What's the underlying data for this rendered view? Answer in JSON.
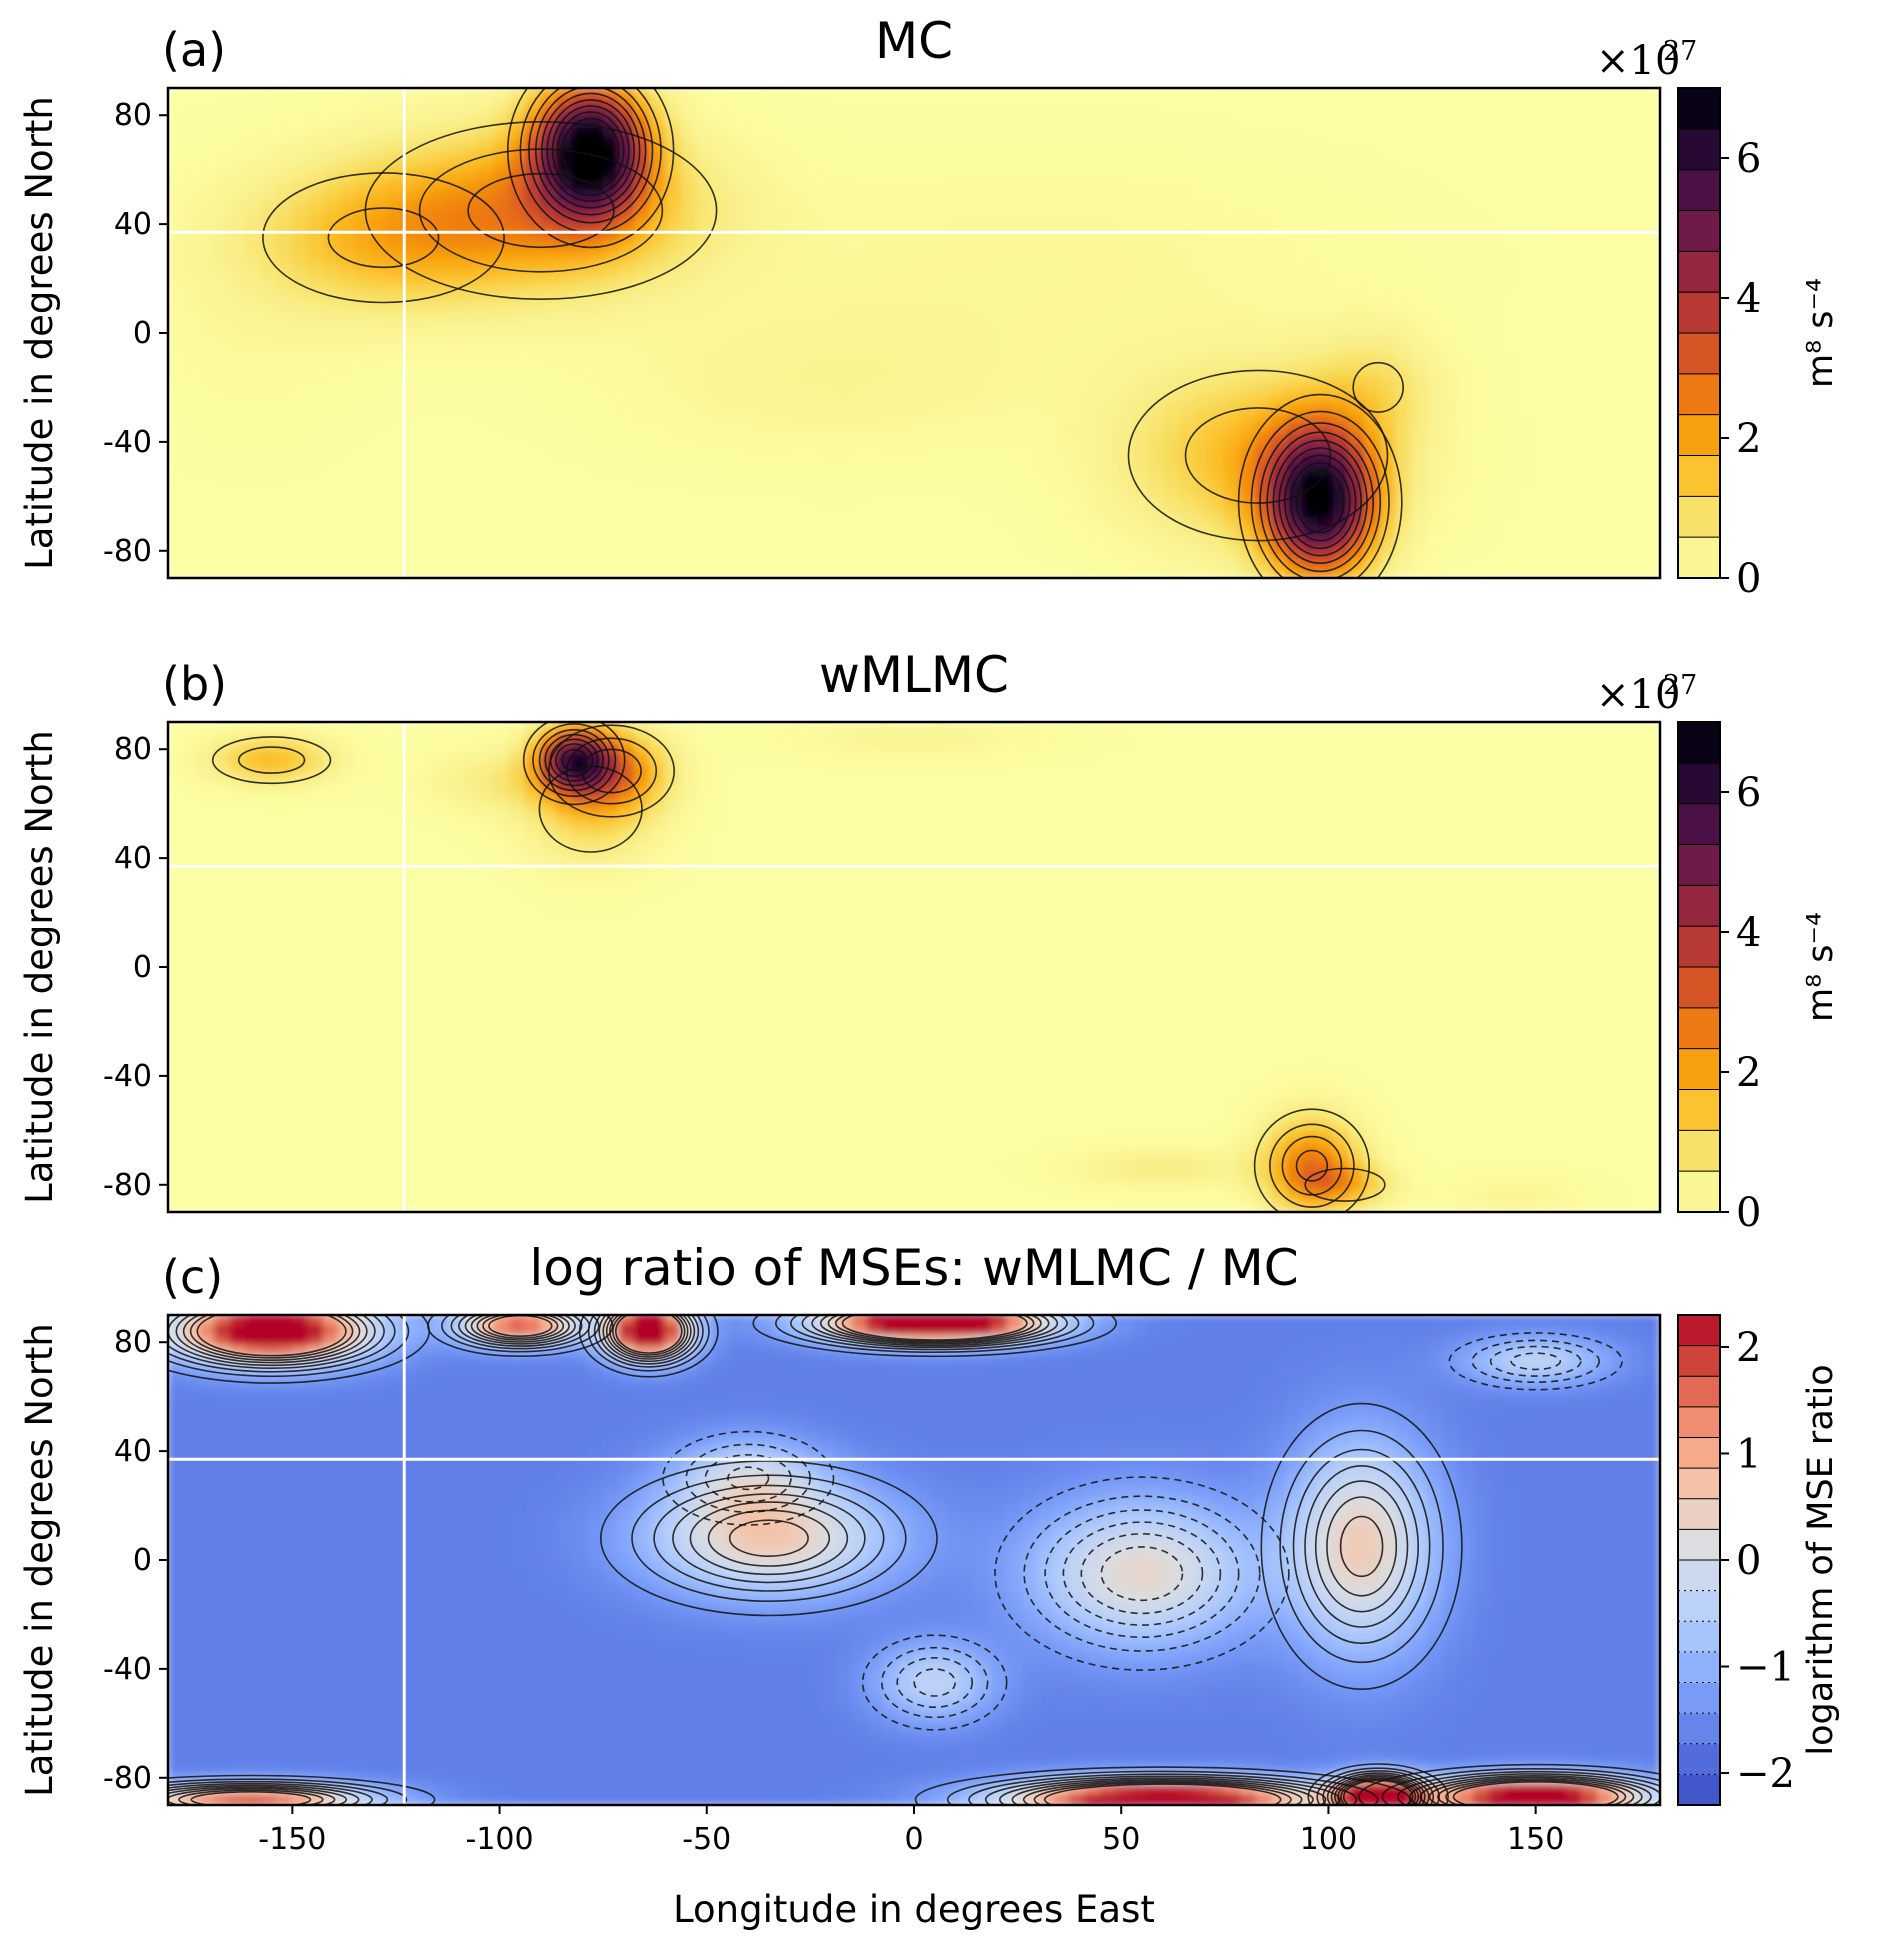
{
  "colors": {
    "background": "#ffffff",
    "guide_line": "#ffffff",
    "contour": "#111111",
    "inferno_scale": [
      "#fcfea4",
      "#f9f08c",
      "#f8dc5c",
      "#fbc12b",
      "#f9a40f",
      "#f0810d",
      "#e0611e",
      "#c8452e",
      "#ab3138",
      "#8c2441",
      "#6d1a47",
      "#4e1248",
      "#2f0a3a",
      "#120621",
      "#000004"
    ],
    "coolwarm_scale": [
      "#3b4cc0",
      "#4a63d3",
      "#5d7ce6",
      "#7396f5",
      "#8badfd",
      "#a3c2fe",
      "#bad0f8",
      "#cbd8ee",
      "#dcdddd",
      "#ebcfc0",
      "#f4c0a3",
      "#f5a485",
      "#ee8468",
      "#dc5d4a",
      "#c53334",
      "#b40426"
    ]
  },
  "chart_data": [
    {
      "id": "a",
      "type": "heatmap",
      "panel_label": "(a)",
      "title": "MC",
      "xlabel": "",
      "ylabel": "Latitude in degrees North",
      "xlim": [
        -180,
        180
      ],
      "ylim": [
        -90,
        90
      ],
      "yticks": [
        80,
        40,
        0,
        -40,
        -80
      ],
      "ytick_labels": [
        "80",
        "40",
        "0",
        "-40",
        "-80"
      ],
      "xticks": [],
      "colormap": "inferno",
      "colorbar": {
        "label": "m⁸ s⁻⁴",
        "multiplier": "×10",
        "multiplier_exp": "27",
        "range": [
          0,
          7
        ],
        "ticks": [
          0,
          2,
          4,
          6
        ],
        "tick_labels": [
          "0",
          "2",
          "4",
          "6"
        ],
        "levels": 12
      },
      "guides": {
        "vertical_longitude": -123,
        "horizontal_latitude": 37
      },
      "blobs": [
        {
          "lon": -78,
          "lat": 67,
          "peak": 6.9,
          "sx": 9,
          "sy": 16
        },
        {
          "lon": -90,
          "lat": 45,
          "peak": 2.2,
          "sx": 26,
          "sy": 20
        },
        {
          "lon": -128,
          "lat": 35,
          "peak": 1.4,
          "sx": 22,
          "sy": 18
        },
        {
          "lon": 98,
          "lat": -62,
          "peak": 6.4,
          "sx": 9,
          "sy": 18
        },
        {
          "lon": 83,
          "lat": -45,
          "peak": 1.6,
          "sx": 22,
          "sy": 22
        },
        {
          "lon": 112,
          "lat": -20,
          "peak": 0.7,
          "sx": 10,
          "sy": 15
        },
        {
          "lon": -20,
          "lat": -18,
          "peak": 0.35,
          "sx": 35,
          "sy": 18
        },
        {
          "lon": 30,
          "lat": 25,
          "peak": 0.25,
          "sx": 50,
          "sy": 25
        },
        {
          "lon": -160,
          "lat": 10,
          "peak": 0.2,
          "sx": 20,
          "sy": 30
        }
      ]
    },
    {
      "id": "b",
      "type": "heatmap",
      "panel_label": "(b)",
      "title": "wMLMC",
      "xlabel": "",
      "ylabel": "Latitude in degrees North",
      "xlim": [
        -180,
        180
      ],
      "ylim": [
        -90,
        90
      ],
      "yticks": [
        80,
        40,
        0,
        -40,
        -80
      ],
      "ytick_labels": [
        "80",
        "40",
        "0",
        "-40",
        "-80"
      ],
      "xticks": [],
      "colormap": "inferno",
      "colorbar": {
        "label": "m⁸ s⁻⁴",
        "multiplier": "×10",
        "multiplier_exp": "27",
        "range": [
          0,
          7
        ],
        "ticks": [
          0,
          2,
          4,
          6
        ],
        "tick_labels": [
          "0",
          "2",
          "4",
          "6"
        ],
        "levels": 12
      },
      "guides": {
        "vertical_longitude": -123,
        "horizontal_latitude": 37
      },
      "blobs": [
        {
          "lon": -82,
          "lat": 76,
          "peak": 4.6,
          "sx": 6,
          "sy": 8
        },
        {
          "lon": -73,
          "lat": 72,
          "peak": 2.4,
          "sx": 9,
          "sy": 10
        },
        {
          "lon": -78,
          "lat": 58,
          "peak": 1.1,
          "sx": 11,
          "sy": 14
        },
        {
          "lon": -100,
          "lat": 68,
          "peak": 0.6,
          "sx": 12,
          "sy": 8
        },
        {
          "lon": -155,
          "lat": 76,
          "peak": 1.6,
          "sx": 10,
          "sy": 6
        },
        {
          "lon": 96,
          "lat": -73,
          "peak": 2.6,
          "sx": 8,
          "sy": 12
        },
        {
          "lon": 104,
          "lat": -80,
          "peak": 1.2,
          "sx": 8,
          "sy": 5
        },
        {
          "lon": 60,
          "lat": -74,
          "peak": 0.6,
          "sx": 15,
          "sy": 5
        },
        {
          "lon": 0,
          "lat": 84,
          "peak": 0.35,
          "sx": 22,
          "sy": 5
        },
        {
          "lon": 145,
          "lat": -84,
          "peak": 0.3,
          "sx": 12,
          "sy": 5
        }
      ]
    },
    {
      "id": "c",
      "type": "heatmap",
      "panel_label": "(c)",
      "title": "log ratio of MSEs: wMLMC / MC",
      "xlabel": "Longitude in degrees East",
      "ylabel": "Latitude in degrees North",
      "xlim": [
        -180,
        180
      ],
      "ylim": [
        -90,
        90
      ],
      "yticks": [
        80,
        40,
        0,
        -40,
        -80
      ],
      "ytick_labels": [
        "80",
        "40",
        "0",
        "-40",
        "-80"
      ],
      "xticks": [
        -150,
        -100,
        -50,
        0,
        50,
        100,
        150
      ],
      "xtick_labels": [
        "-150",
        "-100",
        "-50",
        "0",
        "50",
        "100",
        "150"
      ],
      "colormap": "coolwarm",
      "colorbar": {
        "label": "logarithm of MSE ratio",
        "range": [
          -2.3,
          2.3
        ],
        "ticks": [
          -2,
          -1,
          0,
          1,
          2
        ],
        "tick_labels": [
          "−2",
          "−1",
          "0",
          "1",
          "2"
        ],
        "levels": 16
      },
      "guides": {
        "vertical_longitude": -123,
        "horizontal_latitude": 37
      },
      "baseline": -1.65,
      "blobs": [
        {
          "lon": -155,
          "lat": 84,
          "peak": 3.2,
          "sx": 16,
          "sy": 8
        },
        {
          "lon": -64,
          "lat": 84,
          "peak": 3.3,
          "sx": 7,
          "sy": 7
        },
        {
          "lon": 5,
          "lat": 87,
          "peak": 3.9,
          "sx": 18,
          "sy": 5
        },
        {
          "lon": -95,
          "lat": 86,
          "peak": 1.8,
          "sx": 10,
          "sy": 5
        },
        {
          "lon": 60,
          "lat": -88,
          "peak": 3.3,
          "sx": 25,
          "sy": 5
        },
        {
          "lon": 112,
          "lat": -87,
          "peak": 3.6,
          "sx": 7,
          "sy": 5
        },
        {
          "lon": 150,
          "lat": -87,
          "peak": 3.1,
          "sx": 18,
          "sy": 5
        },
        {
          "lon": -160,
          "lat": -88,
          "peak": 1.7,
          "sx": 20,
          "sy": 4
        },
        {
          "lon": -35,
          "lat": 8,
          "peak": 0.6,
          "sx": 20,
          "sy": 14
        },
        {
          "lon": 108,
          "lat": 5,
          "peak": 0.55,
          "sx": 12,
          "sy": 26
        },
        {
          "lon": 55,
          "lat": -5,
          "peak": 0.35,
          "sx": 18,
          "sy": 18
        },
        {
          "lon": -40,
          "lat": 30,
          "peak": -0.4,
          "sx": 12,
          "sy": 10
        },
        {
          "lon": 5,
          "lat": -45,
          "peak": -0.35,
          "sx": 10,
          "sy": 10
        },
        {
          "lon": 150,
          "lat": 73,
          "peak": -0.35,
          "sx": 12,
          "sy": 6
        }
      ]
    }
  ]
}
